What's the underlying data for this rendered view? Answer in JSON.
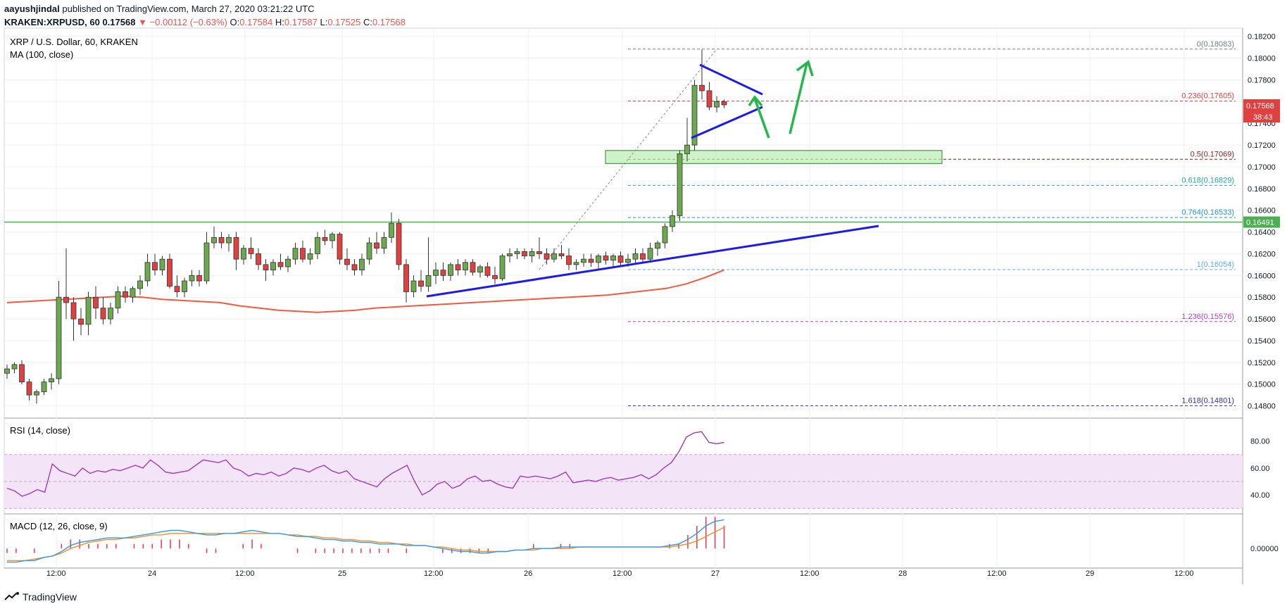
{
  "header": {
    "author": "aayushjindal",
    "published": "published on TradingView.com, March 27, 2020 03:21:22 UTC",
    "symbol": "KRAKEN:XRPUSD, 60",
    "change": "▼ −0.00112 (−0.63%)",
    "last": "0.17568",
    "ohlc": {
      "O": "0.17584",
      "H": "0.17587",
      "L": "0.17525",
      "C": "0.17568"
    }
  },
  "legend": {
    "title": "XRP / U.S. Dollar, 60, KRAKEN",
    "ma": "MA (100, close)",
    "rsi": "RSI (14, close)",
    "macd": "MACD (12, 26, close, 9)"
  },
  "price_tag": {
    "value": "0.17568",
    "countdown": "38:43",
    "level_value": "0.16491"
  },
  "footer": {
    "brand": "TradingView"
  },
  "colors": {
    "up": "#6ca84e",
    "down": "#e04040",
    "ma": "#f05a40",
    "trend": "#1c1ce6",
    "arrow": "#22b84a",
    "support": "#4caf50",
    "rsi": "#9b3fb3",
    "macd": "#2b9ce8",
    "signal": "#ff8a1f",
    "hist": "#e8345a"
  },
  "chart_data": [
    {
      "type": "candlestick",
      "ylim": [
        0.147,
        0.1825
      ],
      "y_ticks": [
        "0.18200",
        "0.18000",
        "0.17800",
        "0.17600",
        "0.17400",
        "0.17200",
        "0.17000",
        "0.16800",
        "0.16600",
        "0.16400",
        "0.16200",
        "0.16000",
        "0.15800",
        "0.15600",
        "0.15400",
        "0.15200",
        "0.15000",
        "0.14800"
      ],
      "x_ticks": [
        "12:00",
        "24",
        "12:00",
        "25",
        "12:00",
        "26",
        "12:00",
        "27",
        "12:00",
        "28",
        "12:00",
        "29",
        "12:00"
      ],
      "fib_levels": [
        {
          "label": "0(0.18083)",
          "value": 0.18083,
          "color": "#787b86"
        },
        {
          "label": "0.236(0.17605)",
          "value": 0.17605,
          "color": "#e04040"
        },
        {
          "label": "0.5(0.17069)",
          "value": 0.17069,
          "color": "#8b1c1c"
        },
        {
          "label": "0.618(0.16829)",
          "value": 0.16829,
          "color": "#26a69a"
        },
        {
          "label": "0.764(0.16533)",
          "value": 0.16533,
          "color": "#2196c8"
        },
        {
          "label": "1(0.16054)",
          "value": 0.16054,
          "color": "#5ab0e0"
        },
        {
          "label": "1.236(0.15576)",
          "value": 0.15576,
          "color": "#b040c0"
        },
        {
          "label": "1.618(0.14801)",
          "value": 0.14801,
          "color": "#3030a0"
        }
      ],
      "support_level": 0.16491,
      "candles_ohlc": [
        [
          0.151,
          0.1518,
          0.1505,
          0.1514
        ],
        [
          0.1514,
          0.152,
          0.151,
          0.1518
        ],
        [
          0.1518,
          0.1522,
          0.15,
          0.1502
        ],
        [
          0.1502,
          0.1505,
          0.1485,
          0.149
        ],
        [
          0.149,
          0.1495,
          0.1482,
          0.1493
        ],
        [
          0.1493,
          0.1505,
          0.149,
          0.1502
        ],
        [
          0.1502,
          0.151,
          0.1495,
          0.1505
        ],
        [
          0.1505,
          0.1595,
          0.15,
          0.158
        ],
        [
          0.158,
          0.1625,
          0.156,
          0.1575
        ],
        [
          0.1575,
          0.158,
          0.154,
          0.156
        ],
        [
          0.156,
          0.157,
          0.1545,
          0.1555
        ],
        [
          0.1555,
          0.1585,
          0.1545,
          0.158
        ],
        [
          0.158,
          0.159,
          0.156,
          0.157
        ],
        [
          0.157,
          0.158,
          0.1555,
          0.156
        ],
        [
          0.156,
          0.1575,
          0.1555,
          0.157
        ],
        [
          0.157,
          0.159,
          0.1565,
          0.1585
        ],
        [
          0.1585,
          0.159,
          0.1575,
          0.158
        ],
        [
          0.158,
          0.159,
          0.1575,
          0.1588
        ],
        [
          0.1588,
          0.16,
          0.1582,
          0.1595
        ],
        [
          0.1595,
          0.162,
          0.159,
          0.1612
        ],
        [
          0.1612,
          0.162,
          0.16,
          0.1605
        ],
        [
          0.1605,
          0.1618,
          0.16,
          0.1615
        ],
        [
          0.1615,
          0.162,
          0.1588,
          0.159
        ],
        [
          0.159,
          0.16,
          0.158,
          0.1585
        ],
        [
          0.1585,
          0.1598,
          0.158,
          0.1595
        ],
        [
          0.1595,
          0.1605,
          0.159,
          0.16
        ],
        [
          0.16,
          0.1605,
          0.159,
          0.1595
        ],
        [
          0.1595,
          0.164,
          0.1592,
          0.163
        ],
        [
          0.163,
          0.1645,
          0.1625,
          0.1635
        ],
        [
          0.1635,
          0.164,
          0.1625,
          0.163
        ],
        [
          0.163,
          0.1638,
          0.1622,
          0.1635
        ],
        [
          0.1635,
          0.164,
          0.1605,
          0.1615
        ],
        [
          0.1615,
          0.1628,
          0.161,
          0.1625
        ],
        [
          0.1625,
          0.1635,
          0.1615,
          0.162
        ],
        [
          0.162,
          0.1625,
          0.1605,
          0.161
        ],
        [
          0.161,
          0.1615,
          0.1595,
          0.1605
        ],
        [
          0.1605,
          0.1615,
          0.16,
          0.1612
        ],
        [
          0.1612,
          0.162,
          0.1605,
          0.1608
        ],
        [
          0.1608,
          0.1618,
          0.1603,
          0.1615
        ],
        [
          0.1615,
          0.163,
          0.161,
          0.1625
        ],
        [
          0.1625,
          0.1632,
          0.1612,
          0.1615
        ],
        [
          0.1615,
          0.1625,
          0.161,
          0.162
        ],
        [
          0.162,
          0.164,
          0.1615,
          0.1635
        ],
        [
          0.1635,
          0.1642,
          0.1628,
          0.1632
        ],
        [
          0.1632,
          0.164,
          0.1625,
          0.1638
        ],
        [
          0.1638,
          0.164,
          0.161,
          0.1615
        ],
        [
          0.1615,
          0.1625,
          0.1605,
          0.161
        ],
        [
          0.161,
          0.1615,
          0.16,
          0.1605
        ],
        [
          0.1605,
          0.162,
          0.16,
          0.1615
        ],
        [
          0.1615,
          0.1635,
          0.161,
          0.163
        ],
        [
          0.163,
          0.164,
          0.162,
          0.1625
        ],
        [
          0.1625,
          0.164,
          0.162,
          0.1635
        ],
        [
          0.1635,
          0.1658,
          0.163,
          0.1648
        ],
        [
          0.1648,
          0.1652,
          0.1605,
          0.161
        ],
        [
          0.161,
          0.1615,
          0.1575,
          0.1585
        ],
        [
          0.1585,
          0.16,
          0.158,
          0.1595
        ],
        [
          0.1595,
          0.1605,
          0.1585,
          0.159
        ],
        [
          0.159,
          0.1635,
          0.1585,
          0.16
        ],
        [
          0.16,
          0.1612,
          0.1592,
          0.1605
        ],
        [
          0.1605,
          0.1612,
          0.1595,
          0.16
        ],
        [
          0.16,
          0.1612,
          0.1595,
          0.161
        ],
        [
          0.161,
          0.1615,
          0.16,
          0.1605
        ],
        [
          0.1605,
          0.1615,
          0.16,
          0.1612
        ],
        [
          0.1612,
          0.1615,
          0.16,
          0.1603
        ],
        [
          0.1603,
          0.161,
          0.1598,
          0.1608
        ],
        [
          0.1608,
          0.1612,
          0.1598,
          0.16
        ],
        [
          0.16,
          0.1608,
          0.1592,
          0.1597
        ],
        [
          0.1597,
          0.162,
          0.1595,
          0.1618
        ],
        [
          0.1618,
          0.1625,
          0.1612,
          0.162
        ],
        [
          0.162,
          0.1625,
          0.1615,
          0.1622
        ],
        [
          0.1622,
          0.1625,
          0.1615,
          0.1618
        ],
        [
          0.1618,
          0.1625,
          0.1612,
          0.1622
        ],
        [
          0.1622,
          0.1635,
          0.1615,
          0.162
        ],
        [
          0.162,
          0.1625,
          0.161,
          0.1615
        ],
        [
          0.1615,
          0.1625,
          0.1612,
          0.162
        ],
        [
          0.162,
          0.1628,
          0.1615,
          0.1618
        ],
        [
          0.1618,
          0.1625,
          0.1605,
          0.161
        ],
        [
          0.161,
          0.1615,
          0.1605,
          0.1612
        ],
        [
          0.1612,
          0.162,
          0.1608,
          0.1615
        ],
        [
          0.1615,
          0.162,
          0.1608,
          0.1612
        ],
        [
          0.1612,
          0.162,
          0.1606,
          0.1618
        ],
        [
          0.1618,
          0.1622,
          0.161,
          0.1614
        ],
        [
          0.1614,
          0.162,
          0.1608,
          0.1618
        ],
        [
          0.1618,
          0.1622,
          0.1608,
          0.1612
        ],
        [
          0.1612,
          0.162,
          0.1608,
          0.1615
        ],
        [
          0.1615,
          0.1625,
          0.161,
          0.162
        ],
        [
          0.162,
          0.1625,
          0.1612,
          0.1615
        ],
        [
          0.1615,
          0.163,
          0.1612,
          0.1625
        ],
        [
          0.1625,
          0.1632,
          0.1618,
          0.163
        ],
        [
          0.163,
          0.1648,
          0.1625,
          0.1645
        ],
        [
          0.1645,
          0.166,
          0.164,
          0.1655
        ],
        [
          0.1655,
          0.1715,
          0.165,
          0.1712
        ],
        [
          0.1712,
          0.1745,
          0.1705,
          0.172
        ],
        [
          0.172,
          0.178,
          0.1715,
          0.1775
        ],
        [
          0.1775,
          0.1808,
          0.1762,
          0.177
        ],
        [
          0.177,
          0.1778,
          0.1752,
          0.1755
        ],
        [
          0.1755,
          0.1765,
          0.175,
          0.176
        ],
        [
          0.176,
          0.1762,
          0.1754,
          0.1757
        ]
      ],
      "ma100": [
        0.1575,
        0.1576,
        0.1577,
        0.1578,
        0.1579,
        0.158,
        0.1581,
        0.158,
        0.1578,
        0.1577,
        0.1576,
        0.1575,
        0.1572,
        0.157,
        0.1568,
        0.1567,
        0.1566,
        0.1567,
        0.1568,
        0.157,
        0.1571,
        0.1572,
        0.1573,
        0.1574,
        0.1575,
        0.1576,
        0.1577,
        0.1578,
        0.1579,
        0.158,
        0.1581,
        0.1582,
        0.1584,
        0.1586,
        0.1588,
        0.1592,
        0.1598,
        0.1605
      ]
    },
    {
      "type": "line",
      "name": "RSI (14, close)",
      "ylim": [
        27,
        96
      ],
      "y_ticks": [
        "80.00",
        "60.00",
        "40.00"
      ],
      "bands": [
        70,
        30
      ],
      "values": [
        45,
        43,
        39,
        41,
        44,
        42,
        63,
        58,
        56,
        54,
        60,
        56,
        58,
        57,
        59,
        58,
        60,
        62,
        60,
        66,
        62,
        57,
        56,
        57,
        58,
        62,
        66,
        65,
        64,
        66,
        60,
        58,
        54,
        56,
        55,
        57,
        54,
        56,
        60,
        59,
        57,
        60,
        62,
        58,
        56,
        58,
        52,
        50,
        48,
        46,
        52,
        56,
        59,
        62,
        50,
        40,
        43,
        48,
        50,
        45,
        47,
        52,
        54,
        50,
        51,
        48,
        46,
        45,
        54,
        53,
        54,
        53,
        52,
        54,
        57,
        49,
        50,
        51,
        50,
        52,
        53,
        51,
        52,
        53,
        55,
        52,
        55,
        60,
        64,
        72,
        83,
        86,
        87,
        79,
        78,
        79
      ]
    },
    {
      "type": "line",
      "name": "MACD (12, 26, close, 9)",
      "ylim": [
        -0.0012,
        0.0022
      ],
      "y_ticks": [
        "0.00000"
      ],
      "macd": [
        -0.0009,
        -0.0009,
        -0.0008,
        -0.0008,
        -0.0006,
        -0.0005,
        -0.0002,
        0.0002,
        0.0004,
        0.0005,
        0.0006,
        0.0007,
        0.0007,
        0.0007,
        0.0008,
        0.0009,
        0.001,
        0.0011,
        0.0012,
        0.0012,
        0.0011,
        0.001,
        0.0009,
        0.0009,
        0.001,
        0.001,
        0.0011,
        0.0012,
        0.0011,
        0.001,
        0.001,
        0.0009,
        0.0008,
        0.0008,
        0.0007,
        0.0006,
        0.0006,
        0.0005,
        0.0005,
        0.0004,
        0.0004,
        0.0003,
        0.0003,
        0.0003,
        0.0002,
        0.0002,
        0.0002,
        0.0001,
        0.0,
        -0.0001,
        -0.0002,
        -0.0002,
        -0.0003,
        -0.0003,
        -0.0002,
        -0.0002,
        -0.0001,
        -0.0001,
        0.0,
        0.0,
        0.0,
        0.0001,
        0.0001,
        0.0001,
        0.0001,
        0.0001,
        0.0001,
        0.0001,
        0.0001,
        0.0001,
        0.0001,
        0.0001,
        0.0001,
        0.0002,
        0.0003,
        0.0006,
        0.001,
        0.0015,
        0.0018,
        0.0019
      ],
      "signal": [
        -0.0008,
        -0.0008,
        -0.0008,
        -0.0007,
        -0.0006,
        -0.0005,
        -0.0003,
        0.0,
        0.0002,
        0.0004,
        0.0005,
        0.0006,
        0.0006,
        0.0007,
        0.0007,
        0.0008,
        0.0009,
        0.0009,
        0.001,
        0.001,
        0.001,
        0.001,
        0.001,
        0.001,
        0.001,
        0.001,
        0.001,
        0.001,
        0.001,
        0.001,
        0.001,
        0.0009,
        0.0009,
        0.0008,
        0.0008,
        0.0007,
        0.0007,
        0.0006,
        0.0006,
        0.0005,
        0.0005,
        0.0004,
        0.0004,
        0.0003,
        0.0003,
        0.0002,
        0.0002,
        0.0001,
        0.0001,
        0.0,
        -0.0001,
        -0.0001,
        -0.0002,
        -0.0002,
        -0.0002,
        -0.0002,
        -0.0001,
        -0.0001,
        -0.0001,
        0.0,
        0.0,
        0.0,
        0.0,
        0.0001,
        0.0001,
        0.0001,
        0.0001,
        0.0001,
        0.0001,
        0.0001,
        0.0001,
        0.0001,
        0.0001,
        0.0001,
        0.0002,
        0.0003,
        0.0005,
        0.0008,
        0.0011,
        0.0014
      ]
    }
  ]
}
